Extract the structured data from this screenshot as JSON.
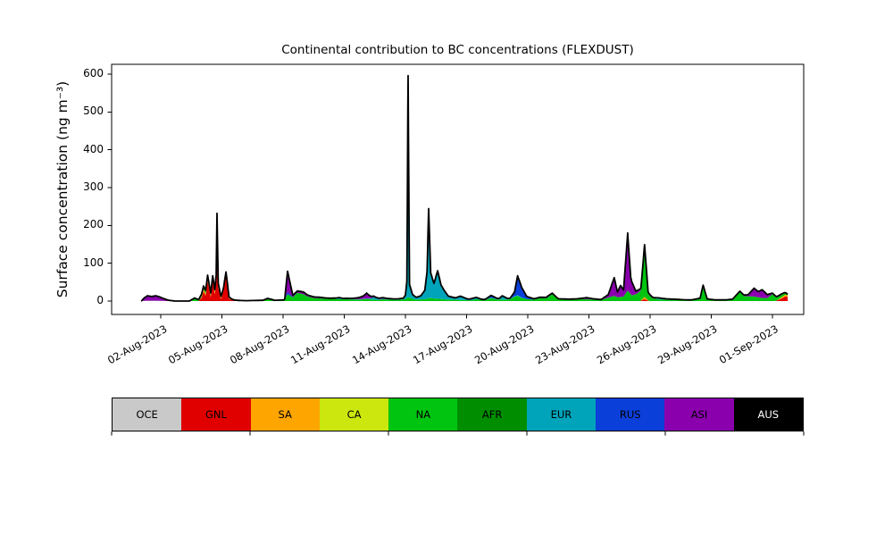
{
  "chart_data": {
    "type": "area",
    "stacked": true,
    "title": "Continental contribution to BC concentrations (FLEXDUST)",
    "ylabel": "Surface concentration (ng m⁻³)",
    "xlabel": "",
    "grid": false,
    "legend_position": "bottom-strip",
    "x_note": "x values are day numbers: 1 = 01-Aug-2023, 32 = 01-Sep-2023",
    "y_unit": "ng m-3",
    "ylim": [
      -30,
      627
    ],
    "domain": [
      1.04,
      32.75
    ],
    "yticks": [
      {
        "value": 0,
        "label": "0"
      },
      {
        "value": 100,
        "label": "100"
      },
      {
        "value": 200,
        "label": "200"
      },
      {
        "value": 300,
        "label": "300"
      },
      {
        "value": 400,
        "label": "400"
      },
      {
        "value": 500,
        "label": "500"
      },
      {
        "value": 600,
        "label": "600"
      }
    ],
    "xticks": [
      {
        "day": 2,
        "label": "02-Aug-2023"
      },
      {
        "day": 5,
        "label": "05-Aug-2023"
      },
      {
        "day": 8,
        "label": "08-Aug-2023"
      },
      {
        "day": 11,
        "label": "11-Aug-2023"
      },
      {
        "day": 14,
        "label": "14-Aug-2023"
      },
      {
        "day": 17,
        "label": "17-Aug-2023"
      },
      {
        "day": 20,
        "label": "20-Aug-2023"
      },
      {
        "day": 23,
        "label": "23-Aug-2023"
      },
      {
        "day": 26,
        "label": "26-Aug-2023"
      },
      {
        "day": 29,
        "label": "29-Aug-2023"
      },
      {
        "day": 32,
        "label": "01-Sep-2023"
      }
    ],
    "line_color": "#000000",
    "series": [
      {
        "name": "OCE",
        "color": "#c9c9c9",
        "label_color": "#000000",
        "points": [
          [
            1.0,
            0
          ],
          [
            1.3,
            1
          ],
          [
            1.9,
            1
          ],
          [
            2.3,
            0
          ]
        ]
      },
      {
        "name": "GNL",
        "color": "#e00000",
        "label_color": "#000000",
        "points": [
          [
            3.85,
            0
          ],
          [
            4.0,
            8
          ],
          [
            4.1,
            26
          ],
          [
            4.2,
            14
          ],
          [
            4.3,
            54
          ],
          [
            4.45,
            10
          ],
          [
            4.55,
            56
          ],
          [
            4.65,
            18
          ],
          [
            4.72,
            55
          ],
          [
            4.76,
            218
          ],
          [
            4.82,
            35
          ],
          [
            4.95,
            5
          ],
          [
            5.08,
            28
          ],
          [
            5.2,
            68
          ],
          [
            5.35,
            6
          ],
          [
            5.6,
            1
          ],
          [
            5.9,
            0
          ],
          [
            25.5,
            0
          ],
          [
            25.73,
            5
          ],
          [
            25.95,
            0
          ],
          [
            32.1,
            0
          ],
          [
            32.3,
            3
          ],
          [
            32.5,
            8
          ],
          [
            32.62,
            12
          ],
          [
            32.75,
            11
          ]
        ]
      },
      {
        "name": "SA",
        "color": "#ffa500",
        "label_color": "#000000",
        "points": [
          [
            3.9,
            0
          ],
          [
            4.1,
            6
          ],
          [
            4.35,
            4
          ],
          [
            4.6,
            5
          ],
          [
            4.76,
            6
          ],
          [
            5.0,
            3
          ],
          [
            5.2,
            4
          ],
          [
            5.45,
            0
          ],
          [
            25.55,
            0
          ],
          [
            25.73,
            6
          ],
          [
            25.95,
            0
          ],
          [
            32.2,
            0
          ],
          [
            32.5,
            4
          ],
          [
            32.65,
            5
          ],
          [
            32.75,
            4
          ]
        ]
      },
      {
        "name": "CA",
        "color": "#cbe70e",
        "label_color": "#000000",
        "points": []
      },
      {
        "name": "NA",
        "color": "#00c410",
        "label_color": "#000000",
        "points": [
          [
            3.4,
            0
          ],
          [
            3.66,
            8
          ],
          [
            3.85,
            4
          ],
          [
            4.0,
            7
          ],
          [
            4.3,
            10
          ],
          [
            4.5,
            6
          ],
          [
            4.76,
            8
          ],
          [
            5.0,
            3
          ],
          [
            5.2,
            5
          ],
          [
            5.5,
            2
          ],
          [
            6.2,
            1
          ],
          [
            7.0,
            2
          ],
          [
            7.25,
            7
          ],
          [
            7.6,
            2
          ],
          [
            8.05,
            3
          ],
          [
            8.22,
            18
          ],
          [
            8.48,
            10
          ],
          [
            8.7,
            22
          ],
          [
            9.0,
            18
          ],
          [
            9.2,
            12
          ],
          [
            9.5,
            8
          ],
          [
            9.8,
            7
          ],
          [
            10.1,
            6
          ],
          [
            10.5,
            6
          ],
          [
            10.76,
            5
          ],
          [
            11.1,
            5
          ],
          [
            11.4,
            4
          ],
          [
            11.8,
            4
          ],
          [
            12.1,
            6
          ],
          [
            12.4,
            4
          ],
          [
            12.7,
            3
          ],
          [
            12.9,
            5
          ],
          [
            13.1,
            4
          ],
          [
            13.6,
            3
          ],
          [
            14.0,
            5
          ],
          [
            14.13,
            10
          ],
          [
            14.5,
            4
          ],
          [
            15.0,
            5
          ],
          [
            15.14,
            8
          ],
          [
            15.6,
            6
          ],
          [
            16.1,
            4
          ],
          [
            16.7,
            3
          ],
          [
            17.2,
            2
          ],
          [
            17.5,
            5
          ],
          [
            17.85,
            2
          ],
          [
            18.2,
            8
          ],
          [
            18.5,
            4
          ],
          [
            18.75,
            4
          ],
          [
            19.1,
            4
          ],
          [
            19.3,
            10
          ],
          [
            19.5,
            14
          ],
          [
            19.7,
            8
          ],
          [
            20.0,
            5
          ],
          [
            20.3,
            4
          ],
          [
            20.6,
            8
          ],
          [
            20.9,
            7
          ],
          [
            21.2,
            18
          ],
          [
            21.5,
            5
          ],
          [
            22.0,
            4
          ],
          [
            22.6,
            5
          ],
          [
            22.9,
            5
          ],
          [
            23.2,
            4
          ],
          [
            23.6,
            3
          ],
          [
            24.0,
            10
          ],
          [
            24.24,
            14
          ],
          [
            24.4,
            10
          ],
          [
            24.7,
            12
          ],
          [
            24.9,
            28
          ],
          [
            25.1,
            15
          ],
          [
            25.3,
            18
          ],
          [
            25.55,
            28
          ],
          [
            25.73,
            132
          ],
          [
            25.9,
            18
          ],
          [
            26.1,
            8
          ],
          [
            26.45,
            4
          ],
          [
            27.2,
            3
          ],
          [
            28.0,
            2
          ],
          [
            28.45,
            6
          ],
          [
            28.6,
            40
          ],
          [
            28.8,
            4
          ],
          [
            29.2,
            2
          ],
          [
            29.7,
            2
          ],
          [
            30.05,
            4
          ],
          [
            30.4,
            24
          ],
          [
            30.6,
            13
          ],
          [
            31.1,
            12
          ],
          [
            31.3,
            10
          ],
          [
            31.5,
            8
          ],
          [
            31.75,
            8
          ],
          [
            32.0,
            18
          ],
          [
            32.2,
            8
          ],
          [
            32.45,
            7
          ],
          [
            32.62,
            4
          ],
          [
            32.75,
            2
          ]
        ]
      },
      {
        "name": "AFR",
        "color": "#008e00",
        "label_color": "#000000",
        "points": []
      },
      {
        "name": "EUR",
        "color": "#00a4ba",
        "label_color": "#000000",
        "points": [
          [
            10.3,
            0
          ],
          [
            10.55,
            1
          ],
          [
            10.76,
            3
          ],
          [
            10.95,
            1
          ],
          [
            11.3,
            1
          ],
          [
            12.2,
            1
          ],
          [
            12.45,
            6
          ],
          [
            12.7,
            2
          ],
          [
            12.9,
            1
          ],
          [
            13.2,
            1
          ],
          [
            13.9,
            2
          ],
          [
            14.0,
            8
          ],
          [
            14.07,
            40
          ],
          [
            14.13,
            580
          ],
          [
            14.2,
            30
          ],
          [
            14.35,
            8
          ],
          [
            14.55,
            5
          ],
          [
            14.75,
            8
          ],
          [
            14.95,
            22
          ],
          [
            15.06,
            70
          ],
          [
            15.14,
            235
          ],
          [
            15.24,
            65
          ],
          [
            15.4,
            38
          ],
          [
            15.58,
            72
          ],
          [
            15.75,
            35
          ],
          [
            15.9,
            22
          ],
          [
            16.1,
            8
          ],
          [
            16.45,
            4
          ],
          [
            16.7,
            9
          ],
          [
            17.05,
            2
          ],
          [
            17.45,
            4
          ],
          [
            17.7,
            1
          ],
          [
            18.6,
            1
          ],
          [
            18.75,
            8
          ],
          [
            19.0,
            1
          ],
          [
            19.6,
            2
          ],
          [
            19.9,
            0
          ],
          [
            26.2,
            0
          ],
          [
            26.45,
            3
          ],
          [
            26.8,
            1
          ],
          [
            27.1,
            0
          ]
        ]
      },
      {
        "name": "RUS",
        "color": "#0b3fd9",
        "label_color": "#000000",
        "points": [
          [
            8.1,
            0
          ],
          [
            8.22,
            6
          ],
          [
            8.45,
            1
          ],
          [
            8.7,
            0
          ],
          [
            17.95,
            0
          ],
          [
            18.2,
            5
          ],
          [
            18.5,
            1
          ],
          [
            19.15,
            1
          ],
          [
            19.35,
            10
          ],
          [
            19.5,
            50
          ],
          [
            19.7,
            26
          ],
          [
            19.95,
            6
          ],
          [
            20.3,
            1
          ],
          [
            20.6,
            1
          ],
          [
            21.0,
            2
          ],
          [
            21.2,
            2
          ],
          [
            21.45,
            0
          ]
        ]
      },
      {
        "name": "ASI",
        "color": "#8a00ad",
        "label_color": "#000000",
        "points": [
          [
            1.05,
            0
          ],
          [
            1.2,
            8
          ],
          [
            1.35,
            13
          ],
          [
            1.55,
            11
          ],
          [
            1.75,
            13
          ],
          [
            1.95,
            10
          ],
          [
            2.15,
            6
          ],
          [
            2.4,
            2
          ],
          [
            2.7,
            0
          ],
          [
            8.08,
            0
          ],
          [
            8.22,
            55
          ],
          [
            8.48,
            4
          ],
          [
            8.75,
            5
          ],
          [
            9.0,
            6
          ],
          [
            9.2,
            4
          ],
          [
            9.5,
            3
          ],
          [
            9.8,
            3
          ],
          [
            10.1,
            2
          ],
          [
            10.5,
            1
          ],
          [
            11.0,
            1
          ],
          [
            11.4,
            2
          ],
          [
            11.7,
            4
          ],
          [
            11.95,
            8
          ],
          [
            12.1,
            14
          ],
          [
            12.3,
            5
          ],
          [
            12.55,
            2
          ],
          [
            12.9,
            3
          ],
          [
            13.1,
            2
          ],
          [
            13.4,
            1
          ],
          [
            13.9,
            1
          ],
          [
            14.13,
            6
          ],
          [
            14.5,
            1
          ],
          [
            15.6,
            2
          ],
          [
            16.2,
            1
          ],
          [
            17.1,
            1
          ],
          [
            18.0,
            1
          ],
          [
            19.5,
            1
          ],
          [
            20.1,
            1
          ],
          [
            21.2,
            1
          ],
          [
            22.4,
            1
          ],
          [
            22.6,
            2
          ],
          [
            22.9,
            4
          ],
          [
            23.2,
            2
          ],
          [
            23.6,
            1
          ],
          [
            23.95,
            8
          ],
          [
            24.24,
            48
          ],
          [
            24.4,
            14
          ],
          [
            24.55,
            30
          ],
          [
            24.7,
            17
          ],
          [
            24.9,
            152
          ],
          [
            25.05,
            44
          ],
          [
            25.3,
            8
          ],
          [
            25.55,
            5
          ],
          [
            25.73,
            6
          ],
          [
            25.95,
            4
          ],
          [
            26.2,
            2
          ],
          [
            26.6,
            1
          ],
          [
            27.2,
            2
          ],
          [
            27.6,
            1
          ],
          [
            28.2,
            1
          ],
          [
            28.6,
            2
          ],
          [
            29.2,
            1
          ],
          [
            30.0,
            1
          ],
          [
            30.4,
            2
          ],
          [
            30.8,
            4
          ],
          [
            31.1,
            22
          ],
          [
            31.3,
            15
          ],
          [
            31.5,
            22
          ],
          [
            31.75,
            9
          ],
          [
            32.0,
            3
          ],
          [
            32.3,
            2
          ],
          [
            32.55,
            2
          ],
          [
            32.75,
            1
          ]
        ]
      },
      {
        "name": "AUS",
        "color": "#000000",
        "label_color": "#ffffff",
        "points": []
      }
    ]
  }
}
